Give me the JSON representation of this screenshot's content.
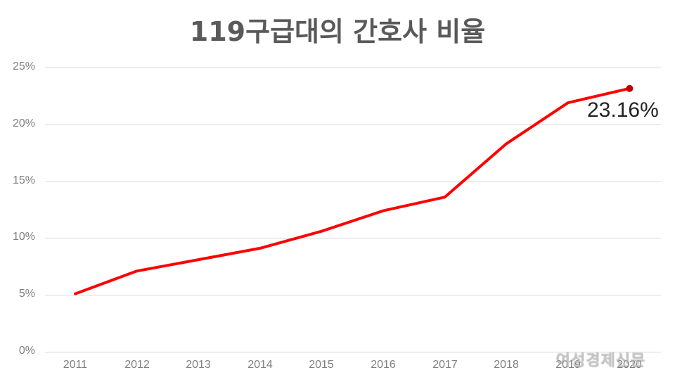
{
  "title": "119구급대의 간호사 비율",
  "annotation": "23.16%",
  "watermark": "여성경제신문",
  "colors": {
    "line": "#ff0000",
    "endpoint": "#c00000",
    "grid": "#d9d9d9",
    "title": "#595959",
    "tick": "#7f7f7f"
  },
  "y_ticks": [
    "0%",
    "5%",
    "10%",
    "15%",
    "20%",
    "25%"
  ],
  "x_ticks": [
    "2011",
    "2012",
    "2013",
    "2014",
    "2015",
    "2016",
    "2017",
    "2018",
    "2019",
    "2020"
  ],
  "chart_data": {
    "type": "line",
    "title": "119구급대의 간호사 비율",
    "xlabel": "",
    "ylabel": "",
    "categories": [
      "2011",
      "2012",
      "2013",
      "2014",
      "2015",
      "2016",
      "2017",
      "2018",
      "2019",
      "2020"
    ],
    "series": [
      {
        "name": "간호사 비율",
        "values": [
          5.1,
          7.1,
          8.1,
          9.1,
          10.6,
          12.4,
          13.6,
          18.3,
          21.9,
          23.16
        ]
      }
    ],
    "ylim": [
      0,
      25
    ],
    "y_ticks": [
      0,
      5,
      10,
      15,
      20,
      25
    ],
    "y_tick_format": "%",
    "grid": true,
    "legend": "none",
    "annotations": [
      {
        "x": "2020",
        "text": "23.16%"
      }
    ]
  }
}
